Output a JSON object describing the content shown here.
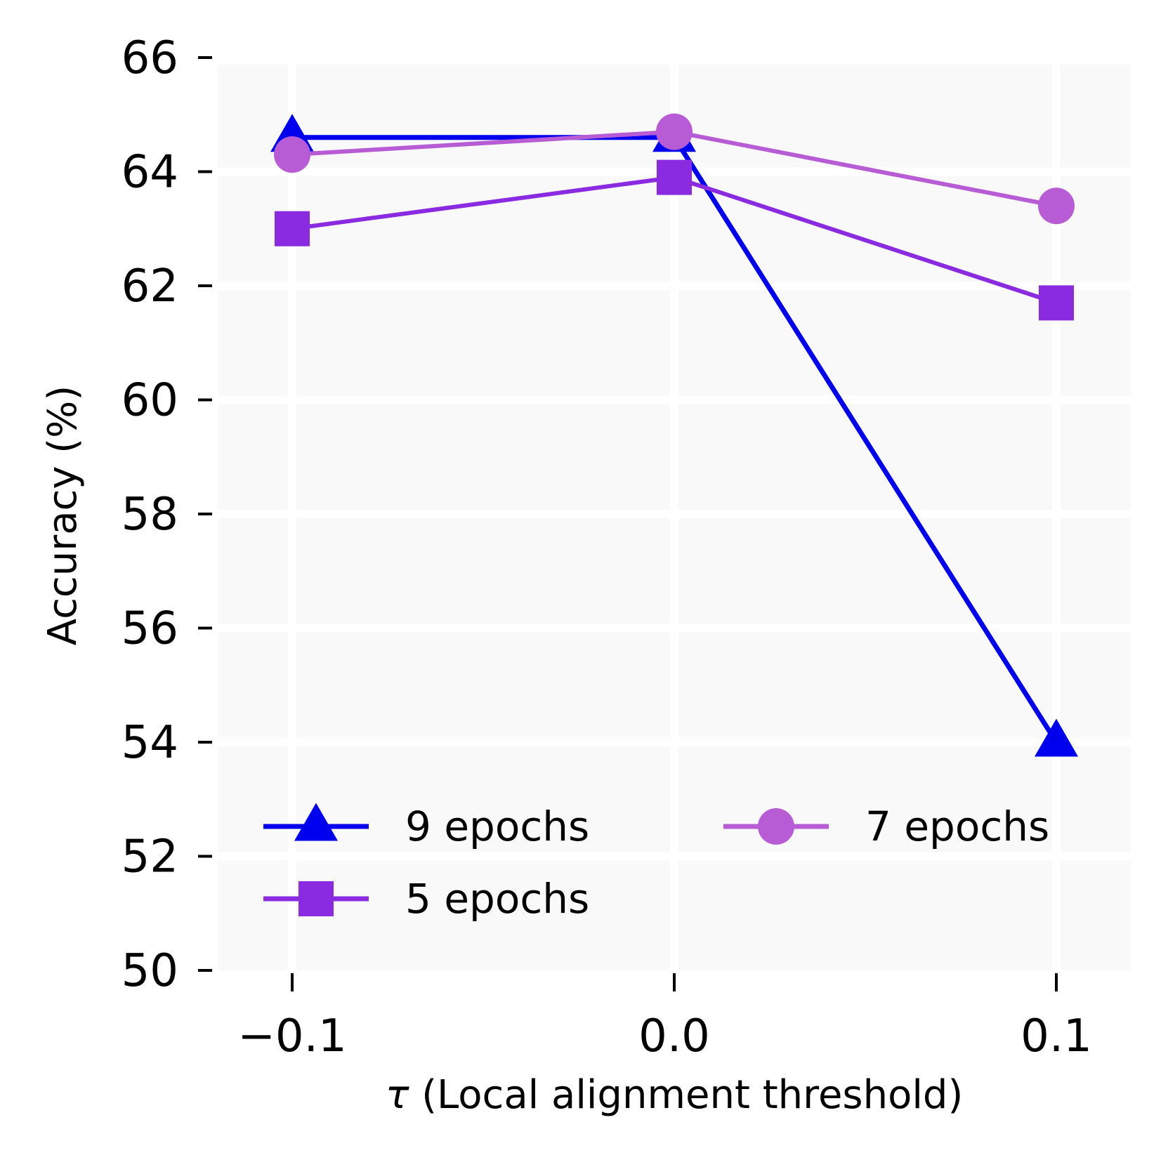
{
  "chart_data": {
    "type": "line",
    "title": "",
    "xlabel_symbol": "τ",
    "xlabel_text": " (Local alignment threshold)",
    "ylabel": "Accuracy (%)",
    "x": [
      -0.1,
      0.0,
      0.1
    ],
    "x_tick_labels": [
      "−0.1",
      "0.0",
      "0.1"
    ],
    "xlim": [
      -0.12,
      0.12
    ],
    "ylim": [
      50,
      66
    ],
    "y_ticks": [
      50,
      52,
      54,
      56,
      58,
      60,
      62,
      64,
      66
    ],
    "y_tick_labels": [
      "50",
      "52",
      "54",
      "56",
      "58",
      "60",
      "62",
      "64",
      "66"
    ],
    "grid": true,
    "legend_position": "lower-left",
    "series": [
      {
        "name": "9 epochs",
        "label": "9 epochs",
        "values": [
          64.6,
          64.6,
          54.0
        ],
        "color": "#0000EE",
        "marker": "triangle"
      },
      {
        "name": "7 epochs",
        "label": "7 epochs",
        "values": [
          64.3,
          64.7,
          63.4
        ],
        "color": "#B85CD6",
        "marker": "circle"
      },
      {
        "name": "5 epochs",
        "label": "5 epochs",
        "values": [
          63.0,
          63.9,
          61.7
        ],
        "color": "#8A2BE2",
        "marker": "square"
      }
    ]
  }
}
